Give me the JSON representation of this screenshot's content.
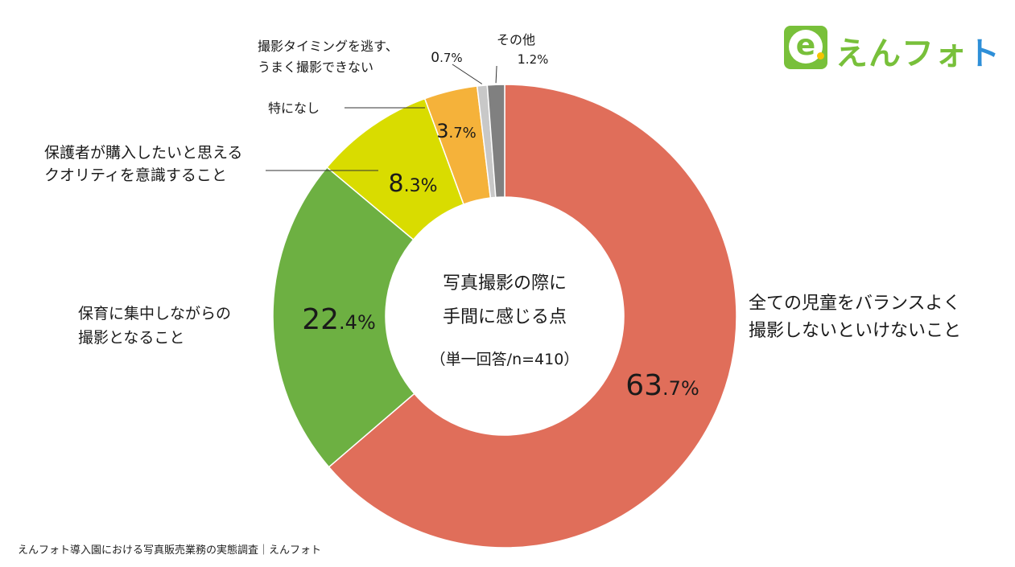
{
  "chart_data": {
    "type": "pie",
    "donut": true,
    "center_text": [
      "写真撮影の際に",
      "手間に感じる点"
    ],
    "center_note": "（単一回答/n=410）",
    "slices": [
      {
        "name": "全ての児童をバランスよく撮影しないといけないこと",
        "label_lines": [
          "全ての児童をバランスよく",
          "撮影しないといけないこと"
        ],
        "value": 63.7,
        "int": "63",
        "dec": ".7%",
        "color": "#e06e5a"
      },
      {
        "name": "保育に集中しながらの撮影となること",
        "label_lines": [
          "保育に集中しながらの",
          "撮影となること"
        ],
        "value": 22.4,
        "int": "22",
        "dec": ".4%",
        "color": "#6db042"
      },
      {
        "name": "保護者が購入したいと思えるクオリティを意識すること",
        "label_lines": [
          "保護者が購入したいと思える",
          "クオリティを意識すること"
        ],
        "value": 8.3,
        "int": "8",
        "dec": ".3%",
        "color": "#d9dc00"
      },
      {
        "name": "特になし",
        "label_lines": [
          "特になし"
        ],
        "value": 3.7,
        "int": "3",
        "dec": ".7%",
        "color": "#f5b23a"
      },
      {
        "name": "撮影タイミングを逃す、うまく撮影できない",
        "label_lines": [
          "撮影タイミングを逃す、",
          "うまく撮影できない"
        ],
        "value": 0.7,
        "int": "0",
        "dec": ".7%",
        "color": "#c8c8c8"
      },
      {
        "name": "その他",
        "label_lines": [
          "その他"
        ],
        "value": 1.2,
        "int": "1",
        "dec": ".2%",
        "color": "#808080"
      }
    ]
  },
  "logo": {
    "prefix": "えんフォ",
    "suffix": "ト",
    "mark": "e",
    "icon": "enphoto-logo-icon"
  },
  "footer": "えんフォト導入園における写真販売業務の実態調査｜えんフォト"
}
